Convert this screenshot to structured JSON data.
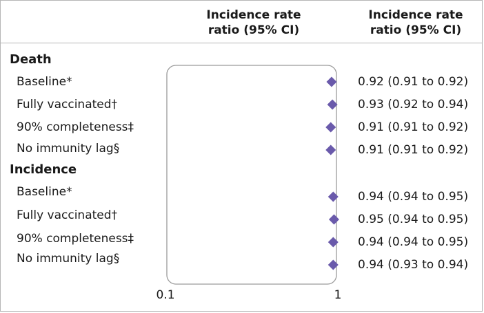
{
  "header": {
    "plot_col_line1": "Incidence rate",
    "plot_col_line2": "ratio (95% CI)",
    "value_col_line1": "Incidence rate",
    "value_col_line2": "ratio (95% CI)"
  },
  "colors": {
    "marker": "#6a5aab",
    "border": "#b5b5b5",
    "plot_box": "#9a9a9a",
    "text": "#1a1a1a"
  },
  "chart_data": {
    "type": "forest",
    "xscale": "log",
    "xlim": [
      0.1,
      1
    ],
    "xticks": [
      "0.1",
      "1"
    ],
    "groups": [
      {
        "name": "Death",
        "rows": [
          {
            "label": "Baseline*",
            "estimate": 0.92,
            "lower": 0.91,
            "upper": 0.92,
            "ci_text": "0.92 (0.91 to 0.92)"
          },
          {
            "label": "Fully vaccinated†",
            "estimate": 0.93,
            "lower": 0.92,
            "upper": 0.94,
            "ci_text": "0.93 (0.92 to 0.94)"
          },
          {
            "label": "90% completeness‡",
            "estimate": 0.91,
            "lower": 0.91,
            "upper": 0.92,
            "ci_text": "0.91 (0.91 to 0.92)"
          },
          {
            "label": "No immunity lag§",
            "estimate": 0.91,
            "lower": 0.91,
            "upper": 0.92,
            "ci_text": "0.91 (0.91 to 0.92)"
          }
        ]
      },
      {
        "name": "Incidence",
        "rows": [
          {
            "label": "Baseline*",
            "estimate": 0.94,
            "lower": 0.94,
            "upper": 0.95,
            "ci_text": "0.94 (0.94 to 0.95)"
          },
          {
            "label": "Fully vaccinated†",
            "estimate": 0.95,
            "lower": 0.94,
            "upper": 0.95,
            "ci_text": "0.95 (0.94 to 0.95)"
          },
          {
            "label": "90% completeness‡",
            "estimate": 0.94,
            "lower": 0.94,
            "upper": 0.95,
            "ci_text": "0.94 (0.94 to 0.95)"
          },
          {
            "label": "No immunity lag§",
            "estimate": 0.94,
            "lower": 0.93,
            "upper": 0.94,
            "ci_text": "0.94 (0.93 to 0.94)"
          }
        ]
      }
    ]
  }
}
